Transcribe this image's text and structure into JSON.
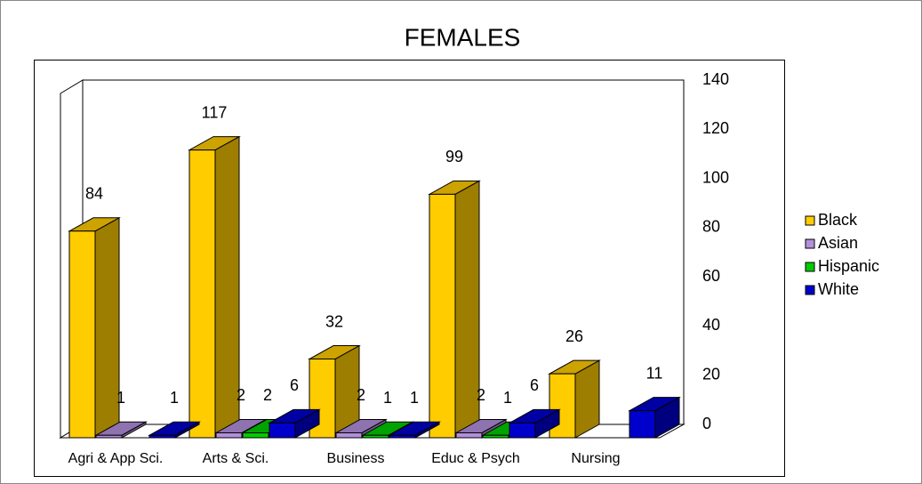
{
  "chart_data": {
    "type": "bar3d",
    "title": "FEMALES",
    "categories": [
      "Agri & App Sci.",
      "Arts & Sci.",
      "Business",
      "Educ & Psych",
      "Nursing"
    ],
    "series": [
      {
        "name": "Black",
        "color": "#ffcc00",
        "values": [
          84,
          117,
          32,
          99,
          26
        ]
      },
      {
        "name": "Asian",
        "color": "#b38fdc",
        "values": [
          1,
          2,
          2,
          2,
          null
        ]
      },
      {
        "name": "Hispanic",
        "color": "#00cc00",
        "values": [
          null,
          2,
          1,
          1,
          null
        ]
      },
      {
        "name": "White",
        "color": "#0000cc",
        "values": [
          1,
          6,
          1,
          6,
          11
        ]
      }
    ],
    "ylim": [
      0,
      140
    ],
    "yticks": [
      0,
      20,
      40,
      60,
      80,
      100,
      120,
      140
    ],
    "grid": false,
    "legend": "right"
  }
}
